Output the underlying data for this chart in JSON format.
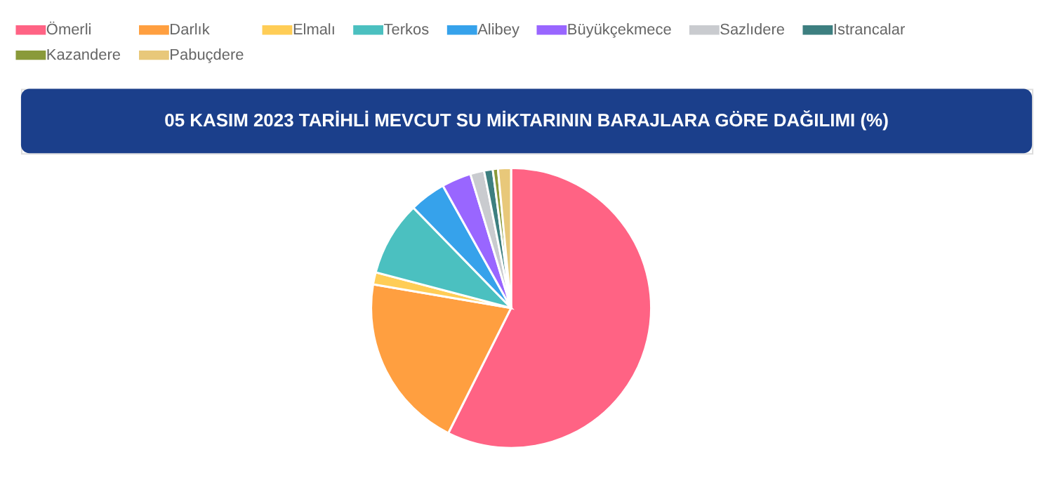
{
  "chart_data": {
    "type": "pie",
    "title": "05 KASIM 2023 TARİHLİ MEVCUT SU MİKTARININ BARAJLARA GÖRE DAĞILIMI (%)",
    "categories": [
      "Ömerli",
      "Darlık",
      "Elmalı",
      "Terkos",
      "Alibey",
      "Büyükçekmece",
      "Sazlıdere",
      "Istrancalar",
      "Kazandere",
      "Pabuçdere"
    ],
    "values": [
      57.4,
      20.3,
      1.4,
      8.6,
      4.2,
      3.4,
      1.6,
      1.0,
      0.6,
      1.5
    ],
    "colors": [
      "#ff6384",
      "#ff9f40",
      "#ffcd56",
      "#4bc0c0",
      "#36a2eb",
      "#9966ff",
      "#c9cbcf",
      "#3d7f80",
      "#8a9a3a",
      "#e8c87a"
    ],
    "legend": "top"
  }
}
